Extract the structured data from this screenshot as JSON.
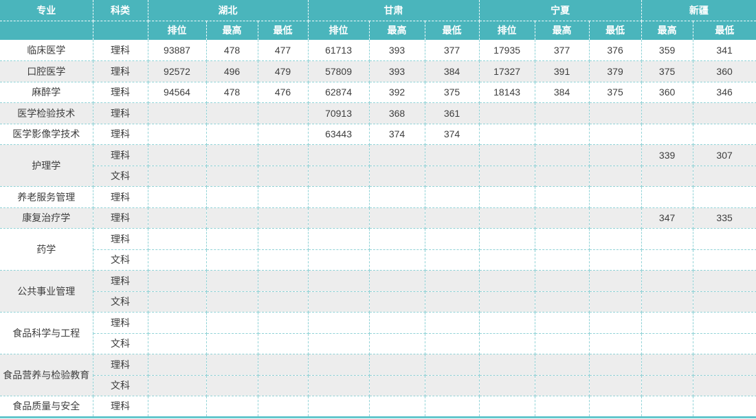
{
  "table": {
    "header": {
      "col_major": "专业",
      "col_subject": "科类",
      "groups": [
        {
          "label": "湖北",
          "cols": [
            "排位",
            "最高",
            "最低"
          ]
        },
        {
          "label": "甘肃",
          "cols": [
            "排位",
            "最高",
            "最低"
          ]
        },
        {
          "label": "宁夏",
          "cols": [
            "排位",
            "最高",
            "最低"
          ]
        },
        {
          "label": "新疆",
          "cols": [
            "最高",
            "最低"
          ]
        }
      ]
    },
    "groups": [
      {
        "major": "临床医学",
        "stripe": false,
        "rows": [
          {
            "subject": "理科",
            "values": [
              "93887",
              "478",
              "477",
              "61713",
              "393",
              "377",
              "17935",
              "377",
              "376",
              "359",
              "341"
            ]
          }
        ]
      },
      {
        "major": "口腔医学",
        "stripe": true,
        "rows": [
          {
            "subject": "理科",
            "values": [
              "92572",
              "496",
              "479",
              "57809",
              "393",
              "384",
              "17327",
              "391",
              "379",
              "375",
              "360"
            ]
          }
        ]
      },
      {
        "major": "麻醉学",
        "stripe": false,
        "rows": [
          {
            "subject": "理科",
            "values": [
              "94564",
              "478",
              "476",
              "62874",
              "392",
              "375",
              "18143",
              "384",
              "375",
              "360",
              "346"
            ]
          }
        ]
      },
      {
        "major": "医学检验技术",
        "stripe": true,
        "rows": [
          {
            "subject": "理科",
            "values": [
              "",
              "",
              "",
              "70913",
              "368",
              "361",
              "",
              "",
              "",
              "",
              ""
            ]
          }
        ]
      },
      {
        "major": "医学影像学技术",
        "stripe": false,
        "rows": [
          {
            "subject": "理科",
            "values": [
              "",
              "",
              "",
              "63443",
              "374",
              "374",
              "",
              "",
              "",
              "",
              ""
            ]
          }
        ]
      },
      {
        "major": "护理学",
        "stripe": true,
        "rows": [
          {
            "subject": "理科",
            "values": [
              "",
              "",
              "",
              "",
              "",
              "",
              "",
              "",
              "",
              "339",
              "307"
            ]
          },
          {
            "subject": "文科",
            "values": [
              "",
              "",
              "",
              "",
              "",
              "",
              "",
              "",
              "",
              "",
              ""
            ]
          }
        ]
      },
      {
        "major": "养老服务管理",
        "stripe": false,
        "rows": [
          {
            "subject": "理科",
            "values": [
              "",
              "",
              "",
              "",
              "",
              "",
              "",
              "",
              "",
              "",
              ""
            ]
          }
        ]
      },
      {
        "major": "康复治疗学",
        "stripe": true,
        "rows": [
          {
            "subject": "理科",
            "values": [
              "",
              "",
              "",
              "",
              "",
              "",
              "",
              "",
              "",
              "347",
              "335"
            ]
          }
        ]
      },
      {
        "major": "药学",
        "stripe": false,
        "rows": [
          {
            "subject": "理科",
            "values": [
              "",
              "",
              "",
              "",
              "",
              "",
              "",
              "",
              "",
              "",
              ""
            ]
          },
          {
            "subject": "文科",
            "values": [
              "",
              "",
              "",
              "",
              "",
              "",
              "",
              "",
              "",
              "",
              ""
            ]
          }
        ]
      },
      {
        "major": "公共事业管理",
        "stripe": true,
        "rows": [
          {
            "subject": "理科",
            "values": [
              "",
              "",
              "",
              "",
              "",
              "",
              "",
              "",
              "",
              "",
              ""
            ]
          },
          {
            "subject": "文科",
            "values": [
              "",
              "",
              "",
              "",
              "",
              "",
              "",
              "",
              "",
              "",
              ""
            ]
          }
        ]
      },
      {
        "major": "食品科学与工程",
        "stripe": false,
        "rows": [
          {
            "subject": "理科",
            "values": [
              "",
              "",
              "",
              "",
              "",
              "",
              "",
              "",
              "",
              "",
              ""
            ]
          },
          {
            "subject": "文科",
            "values": [
              "",
              "",
              "",
              "",
              "",
              "",
              "",
              "",
              "",
              "",
              ""
            ]
          }
        ]
      },
      {
        "major": "食品营养与检验教育",
        "stripe": true,
        "rows": [
          {
            "subject": "理科",
            "values": [
              "",
              "",
              "",
              "",
              "",
              "",
              "",
              "",
              "",
              "",
              ""
            ]
          },
          {
            "subject": "文科",
            "values": [
              "",
              "",
              "",
              "",
              "",
              "",
              "",
              "",
              "",
              "",
              ""
            ]
          }
        ]
      },
      {
        "major": "食品质量与安全",
        "stripe": false,
        "rows": [
          {
            "subject": "理科",
            "values": [
              "",
              "",
              "",
              "",
              "",
              "",
              "",
              "",
              "",
              "",
              ""
            ]
          }
        ]
      }
    ]
  },
  "colors": {
    "header_bg": "#4ab5bc",
    "header_text": "#ffffff",
    "grid_line": "#8fd2d6",
    "stripe_bg": "#ededed",
    "body_text": "#3d3d3d",
    "bottom_bar": "#62c6cc"
  }
}
